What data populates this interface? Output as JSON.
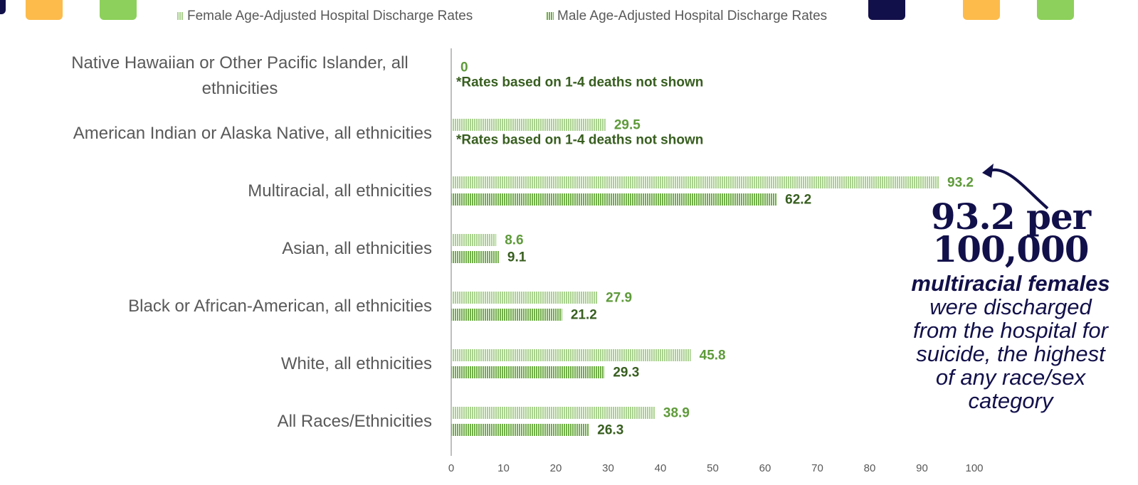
{
  "chart_data": {
    "type": "bar",
    "orientation": "horizontal",
    "categories": [
      "Native Hawaiian or Other Pacific Islander, all ethnicities",
      "American Indian or Alaska Native, all ethnicities",
      "Multiracial, all ethnicities",
      "Asian, all ethnicities",
      "Black or African-American, all ethnicities",
      "White, all ethnicities",
      "All Races/Ethnicities"
    ],
    "series": [
      {
        "name": "Female Age-Adjusted Hospital Discharge Rates",
        "color": "#a9d18e",
        "label_color": "#5e9a3a",
        "values": [
          0,
          29.5,
          93.2,
          8.6,
          27.9,
          45.8,
          38.9
        ]
      },
      {
        "name": "Male Age-Adjusted Hospital Discharge Rates",
        "color": "#70ad47",
        "label_color": "#375e1f",
        "values": [
          null,
          null,
          62.2,
          9.1,
          21.2,
          29.3,
          26.3
        ]
      }
    ],
    "notes": [
      "*Rates based on 1-4 deaths not shown",
      "*Rates based on 1-4 deaths not shown"
    ],
    "xlim": [
      0,
      100
    ],
    "xticks": [
      0,
      10,
      20,
      30,
      40,
      50,
      60,
      70,
      80,
      90,
      100
    ],
    "legend": "top",
    "callout": {
      "headline": "93.2 per 100,000",
      "body": [
        "multiracial females",
        " were discharged from the hospital for suicide, the highest of any race/sex category"
      ]
    }
  }
}
